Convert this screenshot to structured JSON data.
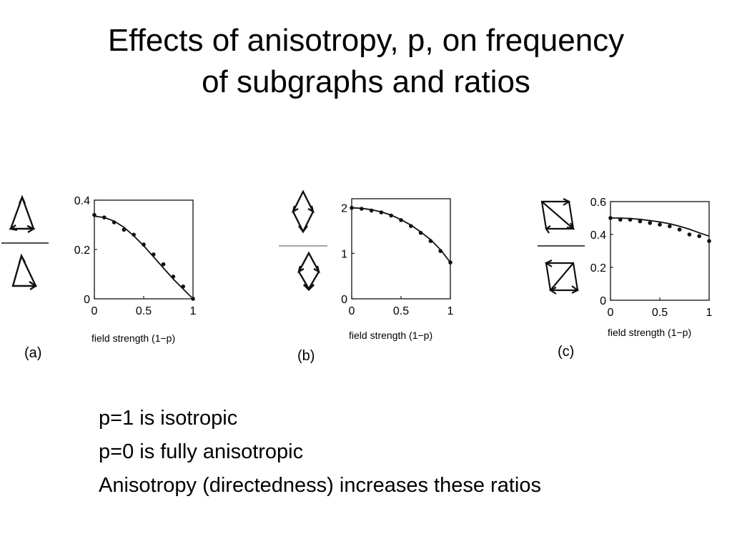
{
  "title": {
    "line1": "Effects of anisotropy, p, on frequency",
    "line2": "of subgraphs and ratios"
  },
  "chart_data": [
    {
      "type": "line",
      "panel_label": "(a)",
      "xlabel": "field strength (1−p)",
      "xlim": [
        0,
        1
      ],
      "ylim": [
        0,
        0.4
      ],
      "xticks": [
        "0",
        "0.5",
        "1"
      ],
      "yticks": [
        "0",
        "0.2",
        "0.4"
      ],
      "ratio_motifs": {
        "numerator": "feedforward-loop-triangle",
        "denominator": "triangle-motif"
      },
      "curve": {
        "x": [
          0,
          0.1,
          0.2,
          0.3,
          0.4,
          0.5,
          0.6,
          0.7,
          0.8,
          0.9,
          1.0
        ],
        "y": [
          0.335,
          0.33,
          0.315,
          0.29,
          0.255,
          0.215,
          0.17,
          0.125,
          0.08,
          0.04,
          0.0
        ]
      },
      "points": {
        "x": [
          0,
          0.1,
          0.2,
          0.3,
          0.4,
          0.5,
          0.6,
          0.7,
          0.8,
          0.9,
          1.0
        ],
        "y": [
          0.34,
          0.33,
          0.31,
          0.28,
          0.26,
          0.22,
          0.18,
          0.14,
          0.09,
          0.05,
          0.0
        ]
      }
    },
    {
      "type": "line",
      "panel_label": "(b)",
      "xlabel": "field strength (1−p)",
      "xlim": [
        0,
        1
      ],
      "ylim": [
        0,
        2.2
      ],
      "xticks": [
        "0",
        "0.5",
        "1"
      ],
      "yticks": [
        "0",
        "1",
        "2"
      ],
      "ratio_motifs": {
        "numerator": "bi-fan-diamond",
        "denominator": "bi-parallel-diamond"
      },
      "curve": {
        "x": [
          0,
          0.1,
          0.2,
          0.3,
          0.4,
          0.5,
          0.6,
          0.7,
          0.8,
          0.9,
          1.0
        ],
        "y": [
          2.0,
          1.99,
          1.96,
          1.91,
          1.84,
          1.74,
          1.62,
          1.47,
          1.3,
          1.08,
          0.8
        ]
      },
      "points": {
        "x": [
          0,
          0.1,
          0.2,
          0.3,
          0.4,
          0.5,
          0.6,
          0.7,
          0.8,
          0.9,
          1.0
        ],
        "y": [
          2.0,
          1.98,
          1.94,
          1.9,
          1.83,
          1.73,
          1.6,
          1.45,
          1.27,
          1.05,
          0.8
        ]
      }
    },
    {
      "type": "line",
      "panel_label": "(c)",
      "xlabel": "field strength (1−p)",
      "xlim": [
        0,
        1
      ],
      "ylim": [
        0,
        0.6
      ],
      "xticks": [
        "0",
        "0.5",
        "1"
      ],
      "yticks": [
        "0",
        "0.2",
        "0.4",
        "0.6"
      ],
      "ratio_motifs": {
        "numerator": "four-node-square-loop",
        "denominator": "four-node-cross-loop"
      },
      "curve": {
        "x": [
          0,
          0.1,
          0.2,
          0.3,
          0.4,
          0.5,
          0.6,
          0.7,
          0.8,
          0.9,
          1.0
        ],
        "y": [
          0.5,
          0.5,
          0.497,
          0.492,
          0.485,
          0.476,
          0.465,
          0.45,
          0.432,
          0.41,
          0.39
        ]
      },
      "points": {
        "x": [
          0,
          0.1,
          0.2,
          0.3,
          0.4,
          0.5,
          0.6,
          0.7,
          0.8,
          0.9,
          1.0
        ],
        "y": [
          0.5,
          0.49,
          0.49,
          0.48,
          0.47,
          0.46,
          0.45,
          0.43,
          0.4,
          0.39,
          0.36
        ]
      }
    }
  ],
  "notes": [
    "p=1 is isotropic",
    "p=0 is fully anisotropic",
    "Anisotropy (directedness) increases these ratios"
  ]
}
